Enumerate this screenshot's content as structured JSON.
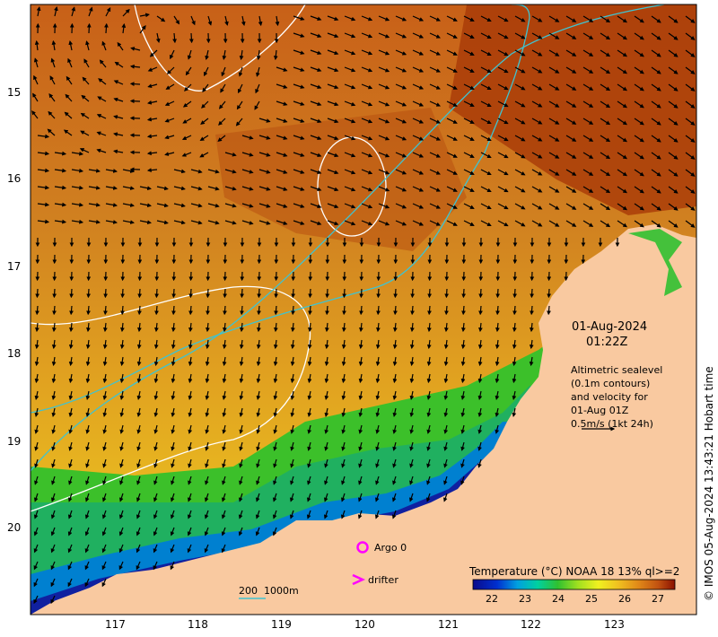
{
  "map": {
    "lon_ticks": [
      "117",
      "118",
      "119",
      "120",
      "121",
      "122",
      "123"
    ],
    "lat_ticks": [
      "15",
      "16",
      "17",
      "18",
      "19",
      "20"
    ],
    "date": "01-Aug-2024",
    "time": "01:22Z",
    "altimetry_note": [
      "Altimetric sealevel",
      "(0.1m contours)",
      "and velocity for",
      "01-Aug 01Z",
      "0.5m/s (1kt 24h)"
    ],
    "legend_argo": "Argo 0",
    "legend_drifter": "drifter",
    "depth_legend_200": "200",
    "depth_legend_1000": "1000m",
    "colorbar_title": "Temperature (°C) NOAA 18 13% ql>=2",
    "colorbar_ticks": [
      "22",
      "23",
      "24",
      "25",
      "26",
      "27"
    ],
    "credit": "© IMOS 05-Aug-2024 13:43:21 Hobart time",
    "colors": {
      "land": "#f9c9a0",
      "contour": "#ffffff",
      "isobath": "#3fc3d0",
      "argo": "#ff00ff",
      "drifter": "#ff00ff"
    },
    "argo_count": 0
  }
}
